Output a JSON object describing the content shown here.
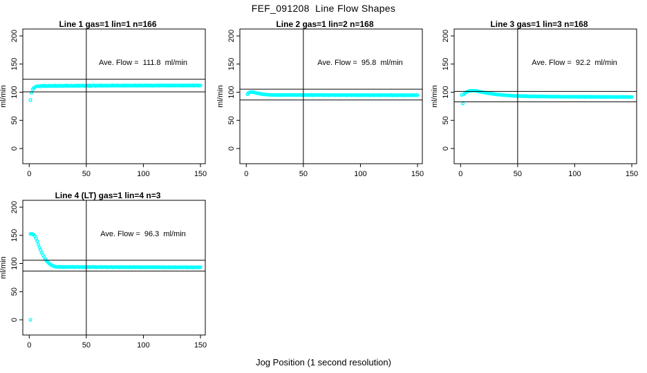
{
  "figure": {
    "title": "FEF_091208  Line Flow Shapes",
    "xlabel": "Jog Position (1 second resolution)",
    "background": "#ffffff",
    "text_color": "#000000"
  },
  "chart_data": {
    "type": "scatter",
    "point_color": "#00ffff",
    "axis_color": "#000000",
    "ylabel": "ml/min",
    "x_ticks": [
      0,
      50,
      100,
      150
    ],
    "y_ticks": [
      0,
      50,
      100,
      150,
      200
    ],
    "xlim": [
      -6,
      156
    ],
    "ylim": [
      -27,
      212
    ],
    "vline_x": 50,
    "x_start": 1,
    "x_step": 1,
    "panels": [
      {
        "title": "Line 1 gas=1 lin=1 n=166",
        "annotation": "Ave. Flow =  111.8  ml/min",
        "avg_flow": 111.8,
        "hline_hi": 123.0,
        "hline_lo": 100.6,
        "y": [
          86,
          99,
          105,
          107.5,
          109,
          110,
          110.5,
          110.8,
          110.6,
          111,
          111.4,
          110.8,
          111.9,
          110.6,
          111.3,
          111.1,
          111.7,
          110.7,
          111.4,
          111.0,
          111.6,
          110.9,
          112.0,
          110.8,
          111.5,
          111.2,
          111.8,
          110.9,
          111.5,
          111.1,
          111.7,
          111.0,
          112.1,
          110.9,
          111.6,
          111.3,
          111.9,
          111.0,
          111.6,
          111.2,
          111.8,
          111.1,
          112.2,
          111.0,
          111.7,
          111.4,
          112.0,
          111.1,
          111.7,
          111.3,
          111.9,
          111.2,
          112.3,
          111.1,
          111.8,
          111.5,
          112.1,
          111.2,
          111.8,
          111.4,
          112.0,
          111.3,
          112.4,
          111.2,
          111.9,
          111.6,
          112.2,
          111.3,
          111.9,
          111.5,
          112.1,
          111.4,
          112.5,
          111.3,
          112.0,
          111.7,
          112.3,
          111.4,
          112.0,
          111.6,
          112.1,
          111.4,
          112.4,
          111.3,
          112.0,
          111.6,
          112.2,
          111.4,
          112.0,
          111.6,
          112.2,
          111.5,
          112.5,
          111.4,
          112.1,
          111.7,
          112.3,
          111.5,
          112.1,
          111.7,
          112.2,
          111.5,
          112.4,
          111.4,
          112.1,
          111.7,
          112.3,
          111.5,
          112.1,
          111.7,
          112.2,
          111.6,
          112.5,
          111.5,
          112.1,
          111.8,
          112.3,
          111.6,
          112.1,
          111.8,
          112.2,
          111.6,
          112.4,
          111.5,
          112.1,
          111.8,
          112.3,
          111.6,
          112.1,
          111.8,
          112.2,
          111.6,
          112.5,
          111.5,
          112.2,
          111.8,
          112.4,
          111.6,
          112.2,
          111.8,
          112.3,
          111.6,
          112.5,
          111.5,
          112.2,
          111.8,
          112.4,
          111.7,
          112.2,
          111.9
        ]
      },
      {
        "title": "Line 2 gas=1 lin=2 n=168",
        "annotation": "Ave. Flow =  95.8  ml/min",
        "avg_flow": 95.8,
        "hline_hi": 105.4,
        "hline_lo": 86.2,
        "y": [
          96.5,
          98.8,
          99.8,
          100.2,
          100.3,
          100.1,
          99.7,
          99.2,
          98.7,
          98.2,
          97.7,
          97.3,
          96.9,
          96.6,
          96.3,
          96.1,
          95.9,
          95.7,
          95.5,
          95.4,
          95.3,
          95.2,
          95.1,
          95.0,
          95.3,
          94.8,
          95.5,
          94.7,
          95.2,
          95.0,
          95.4,
          94.7,
          95.2,
          94.9,
          95.3,
          94.8,
          95.5,
          94.7,
          95.2,
          95.0,
          95.4,
          94.8,
          95.2,
          94.9,
          95.3,
          94.8,
          95.4,
          94.7,
          95.1,
          94.9,
          95.3,
          94.7,
          95.1,
          94.9,
          95.2,
          94.8,
          95.4,
          94.6,
          95.1,
          94.9,
          95.3,
          94.7,
          95.1,
          94.8,
          95.2,
          94.7,
          95.4,
          94.6,
          95.0,
          94.8,
          95.2,
          94.6,
          95.0,
          94.8,
          95.1,
          94.7,
          95.3,
          94.6,
          95.0,
          94.8,
          95.2,
          94.6,
          95.0,
          94.8,
          95.1,
          94.7,
          95.3,
          94.5,
          95.0,
          94.8,
          95.2,
          94.6,
          95.0,
          94.7,
          95.1,
          94.6,
          95.3,
          94.5,
          94.9,
          94.7,
          95.1,
          94.6,
          95.0,
          94.7,
          95.1,
          94.6,
          95.2,
          94.5,
          94.9,
          94.7,
          95.1,
          94.5,
          94.9,
          94.7,
          95.0,
          94.6,
          95.2,
          94.5,
          94.9,
          94.7,
          95.1,
          94.5,
          94.9,
          94.6,
          95.0,
          94.6,
          95.2,
          94.4,
          94.9,
          94.6,
          95.0,
          94.5,
          94.9,
          94.6,
          95.0,
          94.5,
          95.1,
          94.4,
          94.8,
          94.6,
          95.0,
          94.5,
          94.9,
          94.6,
          95.0,
          94.5,
          95.1,
          94.5,
          94.9,
          94.7
        ]
      },
      {
        "title": "Line 3 gas=1 lin=3 n=168",
        "annotation": "Ave. Flow =  92.2  ml/min",
        "avg_flow": 92.2,
        "hline_hi": 101.4,
        "hline_lo": 83.0,
        "y": [
          95.2,
          80.0,
          96.8,
          98.6,
          100.0,
          101.0,
          101.8,
          102.3,
          102.6,
          102.7,
          102.7,
          102.6,
          102.4,
          102.1,
          101.8,
          101.4,
          101.0,
          100.6,
          100.2,
          99.8,
          99.4,
          99.0,
          98.6,
          98.3,
          98.0,
          97.7,
          97.4,
          97.1,
          96.8,
          96.5,
          96.3,
          96.0,
          95.8,
          95.6,
          95.4,
          95.2,
          95.0,
          94.8,
          94.7,
          94.5,
          94.4,
          94.2,
          94.1,
          94.0,
          93.8,
          93.7,
          93.6,
          93.5,
          93.4,
          93.3,
          93.2,
          93.6,
          92.8,
          93.4,
          92.7,
          93.2,
          92.6,
          93.1,
          92.5,
          93.0,
          92.5,
          93.0,
          92.4,
          92.9,
          92.3,
          92.8,
          92.3,
          92.8,
          92.2,
          92.7,
          92.2,
          92.7,
          92.1,
          92.6,
          92.1,
          92.6,
          92.0,
          92.5,
          92.0,
          92.5,
          92.0,
          92.4,
          91.9,
          92.4,
          91.9,
          92.4,
          91.8,
          92.3,
          91.8,
          92.3,
          91.8,
          92.3,
          91.7,
          92.2,
          91.7,
          92.2,
          91.7,
          92.2,
          91.6,
          92.1,
          91.8,
          92.2,
          91.6,
          92.1,
          91.6,
          92.1,
          91.6,
          92.1,
          91.5,
          92.0,
          91.7,
          92.1,
          91.5,
          92.0,
          91.5,
          92.0,
          91.5,
          92.0,
          91.5,
          92.0,
          91.6,
          92.0,
          91.4,
          91.9,
          91.5,
          91.9,
          91.4,
          91.9,
          91.4,
          91.9,
          91.6,
          91.9,
          91.4,
          91.8,
          91.4,
          91.9,
          91.3,
          91.8,
          91.4,
          91.8,
          91.5,
          91.9,
          91.3,
          91.8,
          91.4,
          91.8,
          91.3,
          91.8,
          91.4,
          91.7
        ]
      },
      {
        "title": "Line 4 (LT) gas=1 lin=4 n=3",
        "annotation": "Ave. Flow =  96.3  ml/min",
        "avg_flow": 96.3,
        "hline_hi": 105.9,
        "hline_lo": 86.7,
        "extra_points": [
          [
            1,
            0
          ]
        ],
        "y": [
          152.5,
          152.8,
          152.2,
          151.0,
          148.5,
          144.5,
          139.5,
          134.0,
          128.5,
          123.5,
          119.0,
          115.0,
          111.3,
          108.0,
          105.2,
          102.8,
          100.8,
          99.1,
          97.7,
          96.6,
          95.7,
          95.0,
          94.5,
          94.1,
          93.9,
          94.2,
          93.6,
          94.4,
          93.5,
          94.0,
          93.8,
          94.3,
          93.5,
          94.0,
          93.7,
          94.1,
          93.6,
          94.3,
          93.4,
          93.9,
          93.7,
          94.2,
          93.5,
          94.0,
          93.6,
          94.0,
          93.5,
          94.2,
          93.4,
          93.9,
          93.6,
          94.1,
          93.4,
          93.9,
          93.6,
          94.0,
          93.5,
          94.1,
          93.3,
          93.8,
          93.6,
          94.0,
          93.4,
          93.8,
          93.5,
          93.9,
          93.4,
          94.1,
          93.3,
          93.8,
          93.5,
          94.0,
          93.3,
          93.8,
          93.5,
          93.9,
          93.4,
          94.0,
          93.2,
          93.7,
          93.5,
          93.9,
          93.3,
          93.7,
          93.4,
          93.8,
          93.3,
          94.0,
          93.2,
          93.7,
          93.4,
          93.9,
          93.2,
          93.7,
          93.4,
          93.8,
          93.3,
          93.9,
          93.1,
          93.6,
          93.4,
          93.8,
          93.2,
          93.6,
          93.3,
          93.7,
          93.2,
          93.9,
          93.1,
          93.6,
          93.3,
          93.8,
          93.1,
          93.6,
          93.3,
          93.7,
          93.2,
          93.8,
          93.0,
          93.5,
          93.3,
          93.7,
          93.1,
          93.5,
          93.2,
          93.6,
          93.1,
          93.8,
          93.0,
          93.5,
          93.2,
          93.7,
          93.0,
          93.5,
          93.2,
          93.6,
          93.1,
          93.7,
          92.9,
          93.4,
          93.2,
          93.6,
          93.0,
          93.4,
          93.1,
          93.5,
          93.0,
          93.6,
          93.1,
          93.4
        ]
      }
    ]
  }
}
